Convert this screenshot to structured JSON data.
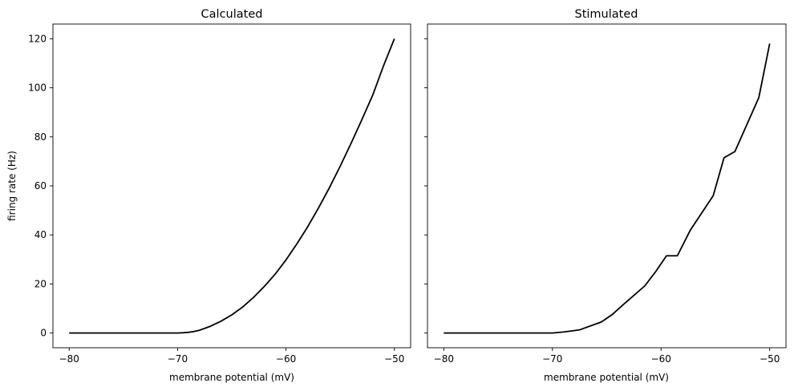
{
  "chart_data": [
    {
      "type": "line",
      "title": "Calculated",
      "xlabel": "membrane potential (mV)",
      "ylabel": "firing rate (Hz)",
      "xlim": [
        -81.5,
        -48.5
      ],
      "ylim": [
        -6,
        126
      ],
      "xticks": [
        -80,
        -70,
        -60,
        -50
      ],
      "xtick_labels": [
        "−80",
        "−70",
        "−60",
        "−50"
      ],
      "yticks": [
        0,
        20,
        40,
        60,
        80,
        100,
        120
      ],
      "ytick_labels": [
        "0",
        "20",
        "40",
        "60",
        "80",
        "100",
        "120"
      ],
      "grid": false,
      "color": "#000000",
      "x": [
        -80,
        -79,
        -78,
        -77,
        -76,
        -75,
        -74,
        -73,
        -72,
        -71,
        -70,
        -69.5,
        -69,
        -68.5,
        -68,
        -67,
        -66,
        -65,
        -64,
        -63,
        -62,
        -61,
        -60,
        -59,
        -58,
        -57,
        -56,
        -55,
        -54,
        -53,
        -52,
        -51,
        -50
      ],
      "y": [
        0,
        0,
        0,
        0,
        0,
        0,
        0,
        0,
        0,
        0,
        0,
        0.1,
        0.3,
        0.6,
        1.1,
        2.7,
        4.8,
        7.4,
        10.6,
        14.5,
        19.0,
        24.0,
        29.8,
        36.3,
        43.3,
        51.0,
        59.2,
        68.0,
        77.3,
        87.0,
        97.0,
        109.0,
        120.0
      ]
    },
    {
      "type": "line",
      "title": "Stimulated",
      "xlabel": "membrane potential (mV)",
      "ylabel": "",
      "xlim": [
        -81.5,
        -48.5
      ],
      "ylim": [
        -6,
        126
      ],
      "xticks": [
        -80,
        -70,
        -60,
        -50
      ],
      "xtick_labels": [
        "−80",
        "−70",
        "−60",
        "−50"
      ],
      "yticks": [
        0,
        20,
        40,
        60,
        80,
        100,
        120
      ],
      "ytick_labels": [],
      "grid": false,
      "color": "#000000",
      "x": [
        -80,
        -78,
        -76,
        -74,
        -72,
        -70,
        -69,
        -68,
        -67.5,
        -65.5,
        -64.5,
        -63.5,
        -61.5,
        -60.5,
        -59.5,
        -58.5,
        -57.3,
        -55.2,
        -54.2,
        -53.2,
        -51,
        -50
      ],
      "y": [
        0,
        0,
        0,
        0,
        0,
        0,
        0.4,
        1.0,
        1.3,
        4.5,
        7.5,
        11.5,
        19.2,
        25.0,
        31.5,
        31.5,
        42.0,
        56.0,
        71.5,
        74.0,
        96.0,
        118.0
      ]
    }
  ]
}
